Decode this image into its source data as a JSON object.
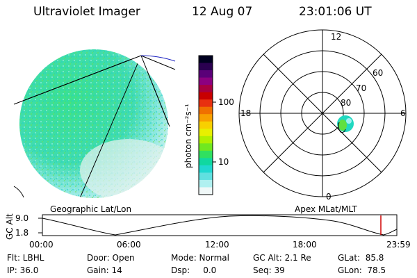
{
  "header": {
    "instrument": "Ultraviolet Imager",
    "date": "12 Aug 07",
    "time": "23:01:06 UT"
  },
  "colorbar": {
    "unit_label": "photon cm⁻²s⁻¹",
    "ticks": [
      "100",
      "10"
    ],
    "colors": [
      "#000020",
      "#2a0050",
      "#5a0078",
      "#8c0080",
      "#a80040",
      "#c80000",
      "#e83010",
      "#f07000",
      "#f8a000",
      "#f8d000",
      "#e8f000",
      "#b0f000",
      "#70e820",
      "#30e060",
      "#10d8a0",
      "#20d8d0",
      "#60e0e0",
      "#b0f0f0",
      "#f0f8f8"
    ]
  },
  "map": {
    "left_caption": "Geographic Lat/Lon",
    "right_caption": "Apex MLat/MLT"
  },
  "polar": {
    "mlt_labels": {
      "top": "12",
      "left": "18",
      "right": "6",
      "bottom": "0"
    },
    "lat_labels": [
      "60",
      "70",
      "80"
    ]
  },
  "timeline": {
    "axis_label": "GC Alt",
    "y_ticks": [
      "9.0",
      "1.8"
    ],
    "x_ticks": [
      "00:00",
      "06:00",
      "12:00",
      "18:00",
      "23:59"
    ],
    "current_time_marker_color": "#d00000"
  },
  "status": {
    "flt": "Flt: LBHL",
    "ip": "IP: 36.0",
    "door": "Door: Open",
    "gain": "Gain: 14",
    "mode": "Mode: Normal",
    "dsp": "Dsp:     0.0",
    "gc_alt": "GC Alt: 2.1 Re",
    "seq": "Seq: 39",
    "glat": "GLat:  85.8",
    "glon": "GLon:  78.5"
  }
}
